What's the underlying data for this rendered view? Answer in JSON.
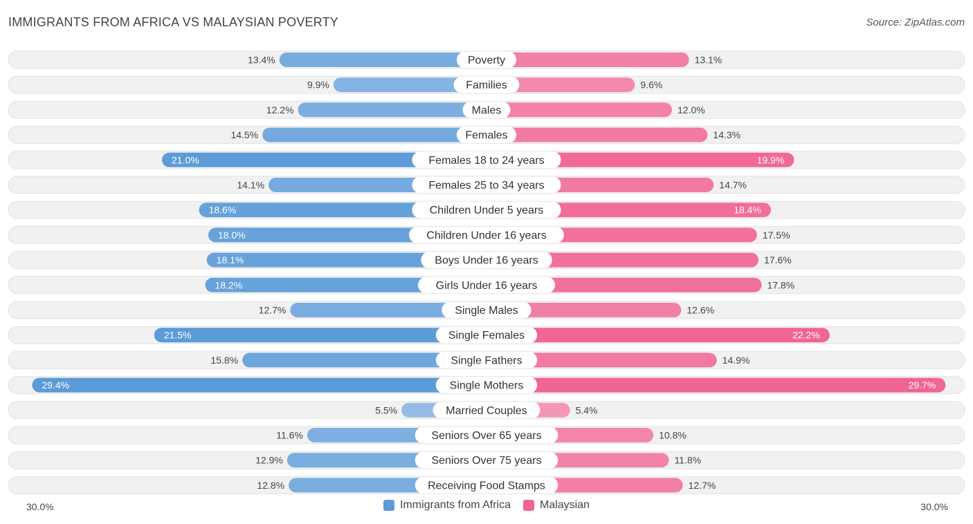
{
  "title": "IMMIGRANTS FROM AFRICA VS MALAYSIAN POVERTY",
  "source": "Source: ZipAtlas.com",
  "colors": {
    "left": "#5b9bd8",
    "left_light": "#a9c8ec",
    "right": "#f06592",
    "right_light": "#f5a7c2",
    "row_bg": "#f1f1f1"
  },
  "chart_data": {
    "type": "bar",
    "orientation": "horizontal-diverging",
    "axis_min_label": "30.0%",
    "axis_max_label": "30.0%",
    "xlim": [
      0,
      30
    ],
    "categories": [
      "Poverty",
      "Families",
      "Males",
      "Females",
      "Females 18 to 24 years",
      "Females 25 to 34 years",
      "Children Under 5 years",
      "Children Under 16 years",
      "Boys Under 16 years",
      "Girls Under 16 years",
      "Single Males",
      "Single Females",
      "Single Fathers",
      "Single Mothers",
      "Married Couples",
      "Seniors Over 65 years",
      "Seniors Over 75 years",
      "Receiving Food Stamps"
    ],
    "series": [
      {
        "name": "Immigrants from Africa",
        "values": [
          13.4,
          9.9,
          12.2,
          14.5,
          21.0,
          14.1,
          18.6,
          18.0,
          18.1,
          18.2,
          12.7,
          21.5,
          15.8,
          29.4,
          5.5,
          11.6,
          12.9,
          12.8
        ],
        "labels": [
          "13.4%",
          "9.9%",
          "12.2%",
          "14.5%",
          "21.0%",
          "14.1%",
          "18.6%",
          "18.0%",
          "18.1%",
          "18.2%",
          "12.7%",
          "21.5%",
          "15.8%",
          "29.4%",
          "5.5%",
          "11.6%",
          "12.9%",
          "12.8%"
        ]
      },
      {
        "name": "Malaysian",
        "values": [
          13.1,
          9.6,
          12.0,
          14.3,
          19.9,
          14.7,
          18.4,
          17.5,
          17.6,
          17.8,
          12.6,
          22.2,
          14.9,
          29.7,
          5.4,
          10.8,
          11.8,
          12.7
        ],
        "labels": [
          "13.1%",
          "9.6%",
          "12.0%",
          "14.3%",
          "19.9%",
          "14.7%",
          "18.4%",
          "17.5%",
          "17.6%",
          "17.8%",
          "12.6%",
          "22.2%",
          "14.9%",
          "29.7%",
          "5.4%",
          "10.8%",
          "11.8%",
          "12.7%"
        ]
      }
    ],
    "legend": [
      "Immigrants from Africa",
      "Malaysian"
    ]
  }
}
